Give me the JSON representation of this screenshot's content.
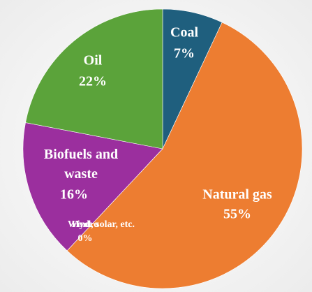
{
  "chart_data": {
    "type": "pie",
    "categories": [
      "Coal",
      "Natural gas",
      "Hydro",
      "Wind, solar, etc.",
      "Biofuels and waste",
      "Oil"
    ],
    "values": [
      7,
      55,
      0,
      0,
      16,
      22
    ],
    "value_labels": [
      "7%",
      "55%",
      "0%",
      "0%",
      "16%",
      "22%"
    ],
    "colors": [
      "#1f5f7e",
      "#ed7d31",
      "#5b9bd5",
      "#a5a5a5",
      "#9b2f9e",
      "#5ba33a"
    ]
  }
}
